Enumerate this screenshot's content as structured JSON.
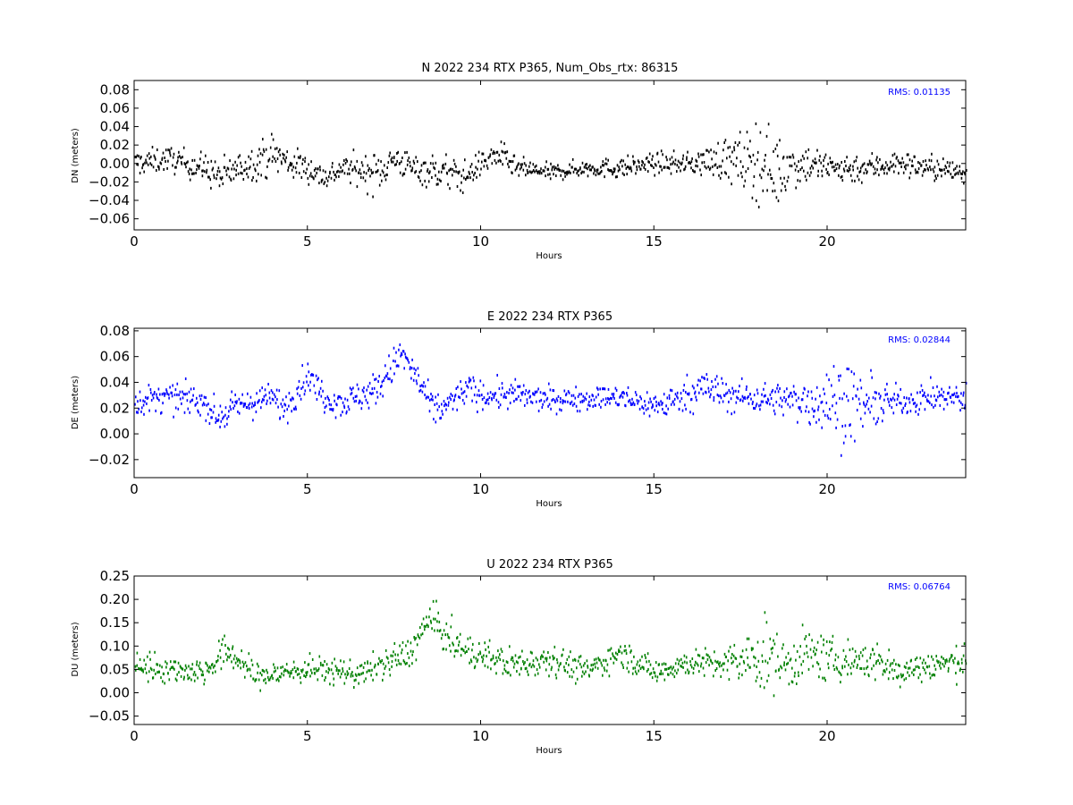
{
  "chart_data": [
    {
      "type": "scatter",
      "title": "N 2022 234 RTX  P365, Num_Obs_rtx: 86315",
      "xlabel": "Hours",
      "ylabel": "DN (meters)",
      "xlim": [
        0,
        24
      ],
      "ylim": [
        -0.072,
        0.09
      ],
      "xticks": [
        0,
        5,
        10,
        15,
        20
      ],
      "xtick_labels": [
        "0",
        "5",
        "10",
        "15",
        "20"
      ],
      "yticks": [
        -0.06,
        -0.04,
        -0.02,
        0.0,
        0.02,
        0.04,
        0.06,
        0.08
      ],
      "ytick_labels": [
        "−0.06",
        "−0.04",
        "−0.02",
        "0.00",
        "0.02",
        "0.04",
        "0.06",
        "0.08"
      ],
      "color": "#000000",
      "annotation": "RMS:  0.01135",
      "annotation_color": "#0000ff",
      "grid": false,
      "series": [
        {
          "x": [
            0.0,
            1.0,
            2.0,
            2.5,
            3.0,
            4.0,
            4.5,
            5.0,
            5.5,
            6.0,
            7.0,
            7.5,
            8.0,
            9.0,
            9.5,
            10.0,
            10.5,
            11.0,
            12.0,
            13.0,
            14.0,
            15.0,
            16.0,
            17.0,
            17.5,
            18.0,
            18.5,
            19.0,
            19.5,
            20.0,
            21.0,
            22.0,
            23.0,
            24.0
          ],
          "y": [
            0.0,
            0.005,
            -0.005,
            -0.015,
            -0.005,
            0.01,
            0.0,
            -0.005,
            -0.015,
            -0.005,
            -0.01,
            0.005,
            -0.005,
            -0.01,
            -0.015,
            0.0,
            0.01,
            -0.005,
            -0.01,
            -0.005,
            -0.005,
            0.0,
            0.0,
            0.005,
            0.0,
            0.005,
            -0.01,
            0.0,
            0.0,
            -0.005,
            -0.005,
            0.0,
            -0.005,
            -0.01
          ],
          "spread": [
            0.012,
            0.012,
            0.014,
            0.018,
            0.014,
            0.02,
            0.016,
            0.014,
            0.012,
            0.012,
            0.02,
            0.014,
            0.014,
            0.018,
            0.015,
            0.012,
            0.014,
            0.01,
            0.008,
            0.008,
            0.01,
            0.01,
            0.01,
            0.02,
            0.03,
            0.04,
            0.035,
            0.025,
            0.018,
            0.016,
            0.014,
            0.012,
            0.012,
            0.012
          ]
        }
      ]
    },
    {
      "type": "scatter",
      "title": "E 2022 234 RTX  P365",
      "xlabel": "Hours",
      "ylabel": "DE (meters)",
      "xlim": [
        0,
        24
      ],
      "ylim": [
        -0.034,
        0.082
      ],
      "xticks": [
        0,
        5,
        10,
        15,
        20
      ],
      "xtick_labels": [
        "0",
        "5",
        "10",
        "15",
        "20"
      ],
      "yticks": [
        -0.02,
        0.0,
        0.02,
        0.04,
        0.06,
        0.08
      ],
      "ytick_labels": [
        "−0.02",
        "0.00",
        "0.02",
        "0.04",
        "0.06",
        "0.08"
      ],
      "color": "#0000ff",
      "annotation": "RMS:  0.02844",
      "annotation_color": "#0000ff",
      "grid": false,
      "series": [
        {
          "x": [
            0.0,
            1.0,
            2.0,
            2.4,
            3.0,
            4.0,
            4.3,
            5.0,
            5.5,
            6.0,
            7.0,
            7.7,
            8.2,
            8.6,
            9.0,
            9.6,
            10.0,
            11.0,
            12.0,
            13.0,
            14.0,
            15.0,
            15.5,
            16.0,
            16.5,
            17.0,
            18.0,
            19.0,
            20.0,
            20.5,
            21.0,
            22.0,
            23.0,
            24.0
          ],
          "y": [
            0.025,
            0.028,
            0.025,
            0.012,
            0.022,
            0.028,
            0.02,
            0.045,
            0.028,
            0.024,
            0.035,
            0.062,
            0.04,
            0.018,
            0.022,
            0.035,
            0.03,
            0.03,
            0.026,
            0.028,
            0.028,
            0.022,
            0.025,
            0.032,
            0.036,
            0.03,
            0.028,
            0.026,
            0.025,
            0.025,
            0.022,
            0.025,
            0.028,
            0.028
          ],
          "spread": [
            0.01,
            0.01,
            0.01,
            0.01,
            0.01,
            0.01,
            0.012,
            0.01,
            0.01,
            0.01,
            0.012,
            0.012,
            0.012,
            0.012,
            0.01,
            0.01,
            0.01,
            0.01,
            0.008,
            0.008,
            0.008,
            0.01,
            0.01,
            0.012,
            0.014,
            0.012,
            0.01,
            0.012,
            0.025,
            0.03,
            0.02,
            0.01,
            0.01,
            0.01
          ]
        }
      ]
    },
    {
      "type": "scatter",
      "title": "U 2022 234 RTX  P365",
      "xlabel": "Hours",
      "ylabel": "DU (meters)",
      "xlim": [
        0,
        24
      ],
      "ylim": [
        -0.068,
        0.25
      ],
      "xticks": [
        0,
        5,
        10,
        15,
        20
      ],
      "xtick_labels": [
        "0",
        "5",
        "10",
        "15",
        "20"
      ],
      "yticks": [
        -0.05,
        0.0,
        0.05,
        0.1,
        0.15,
        0.2,
        0.25
      ],
      "ytick_labels": [
        "−0.05",
        "0.00",
        "0.05",
        "0.10",
        "0.15",
        "0.20",
        "0.25"
      ],
      "color": "#008000",
      "annotation": "RMS:  0.06764",
      "annotation_color": "#0000ff",
      "grid": false,
      "series": [
        {
          "x": [
            0.0,
            1.0,
            2.0,
            2.7,
            3.5,
            4.0,
            5.0,
            6.0,
            6.5,
            7.5,
            8.0,
            8.5,
            9.0,
            9.5,
            10.0,
            11.0,
            12.0,
            13.0,
            14.0,
            15.0,
            16.0,
            17.0,
            17.8,
            18.2,
            18.8,
            19.5,
            20.0,
            21.0,
            21.5,
            22.0,
            23.0,
            24.0
          ],
          "y": [
            0.06,
            0.05,
            0.045,
            0.09,
            0.035,
            0.04,
            0.05,
            0.045,
            0.04,
            0.07,
            0.09,
            0.16,
            0.12,
            0.09,
            0.08,
            0.06,
            0.075,
            0.045,
            0.085,
            0.045,
            0.065,
            0.06,
            0.07,
            0.08,
            0.06,
            0.085,
            0.07,
            0.07,
            0.065,
            0.045,
            0.06,
            0.065
          ],
          "spread": [
            0.03,
            0.025,
            0.025,
            0.035,
            0.025,
            0.025,
            0.025,
            0.025,
            0.025,
            0.03,
            0.03,
            0.035,
            0.035,
            0.03,
            0.03,
            0.03,
            0.03,
            0.025,
            0.025,
            0.025,
            0.025,
            0.03,
            0.06,
            0.07,
            0.05,
            0.05,
            0.04,
            0.04,
            0.035,
            0.03,
            0.03,
            0.03
          ]
        }
      ]
    }
  ]
}
